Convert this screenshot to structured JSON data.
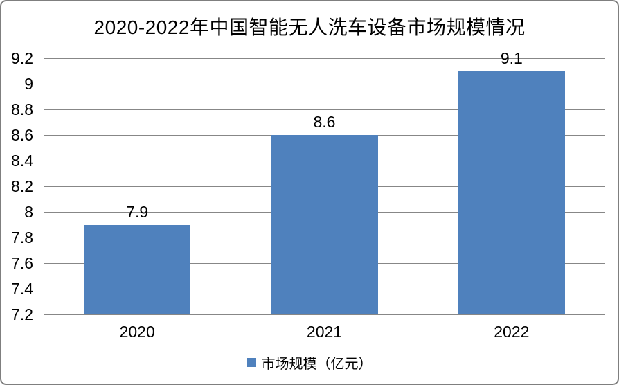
{
  "frame": {
    "background": "#ffffff",
    "border_color": "#7f7f7f"
  },
  "chart_data": {
    "type": "bar",
    "title": "2020-2022年中国智能无人洗车设备市场规模情况",
    "categories": [
      "2020",
      "2021",
      "2022"
    ],
    "series": [
      {
        "name": "市场规模（亿元）",
        "values": [
          7.9,
          8.6,
          9.1
        ]
      }
    ],
    "data_labels": [
      "7.9",
      "8.6",
      "9.1"
    ],
    "y_ticks": [
      "9.2",
      "9",
      "8.8",
      "8.6",
      "8.4",
      "8.2",
      "8",
      "7.8",
      "7.6",
      "7.4",
      "7.2"
    ],
    "ylim": [
      7.2,
      9.2
    ],
    "xlabel": "",
    "ylabel": "",
    "grid": "horizontal",
    "legend": "市场规模（亿元）",
    "legend_position": "bottom",
    "bar_color": "#4F81BD",
    "gridline_color": "#878787",
    "text_color": "#000000"
  }
}
